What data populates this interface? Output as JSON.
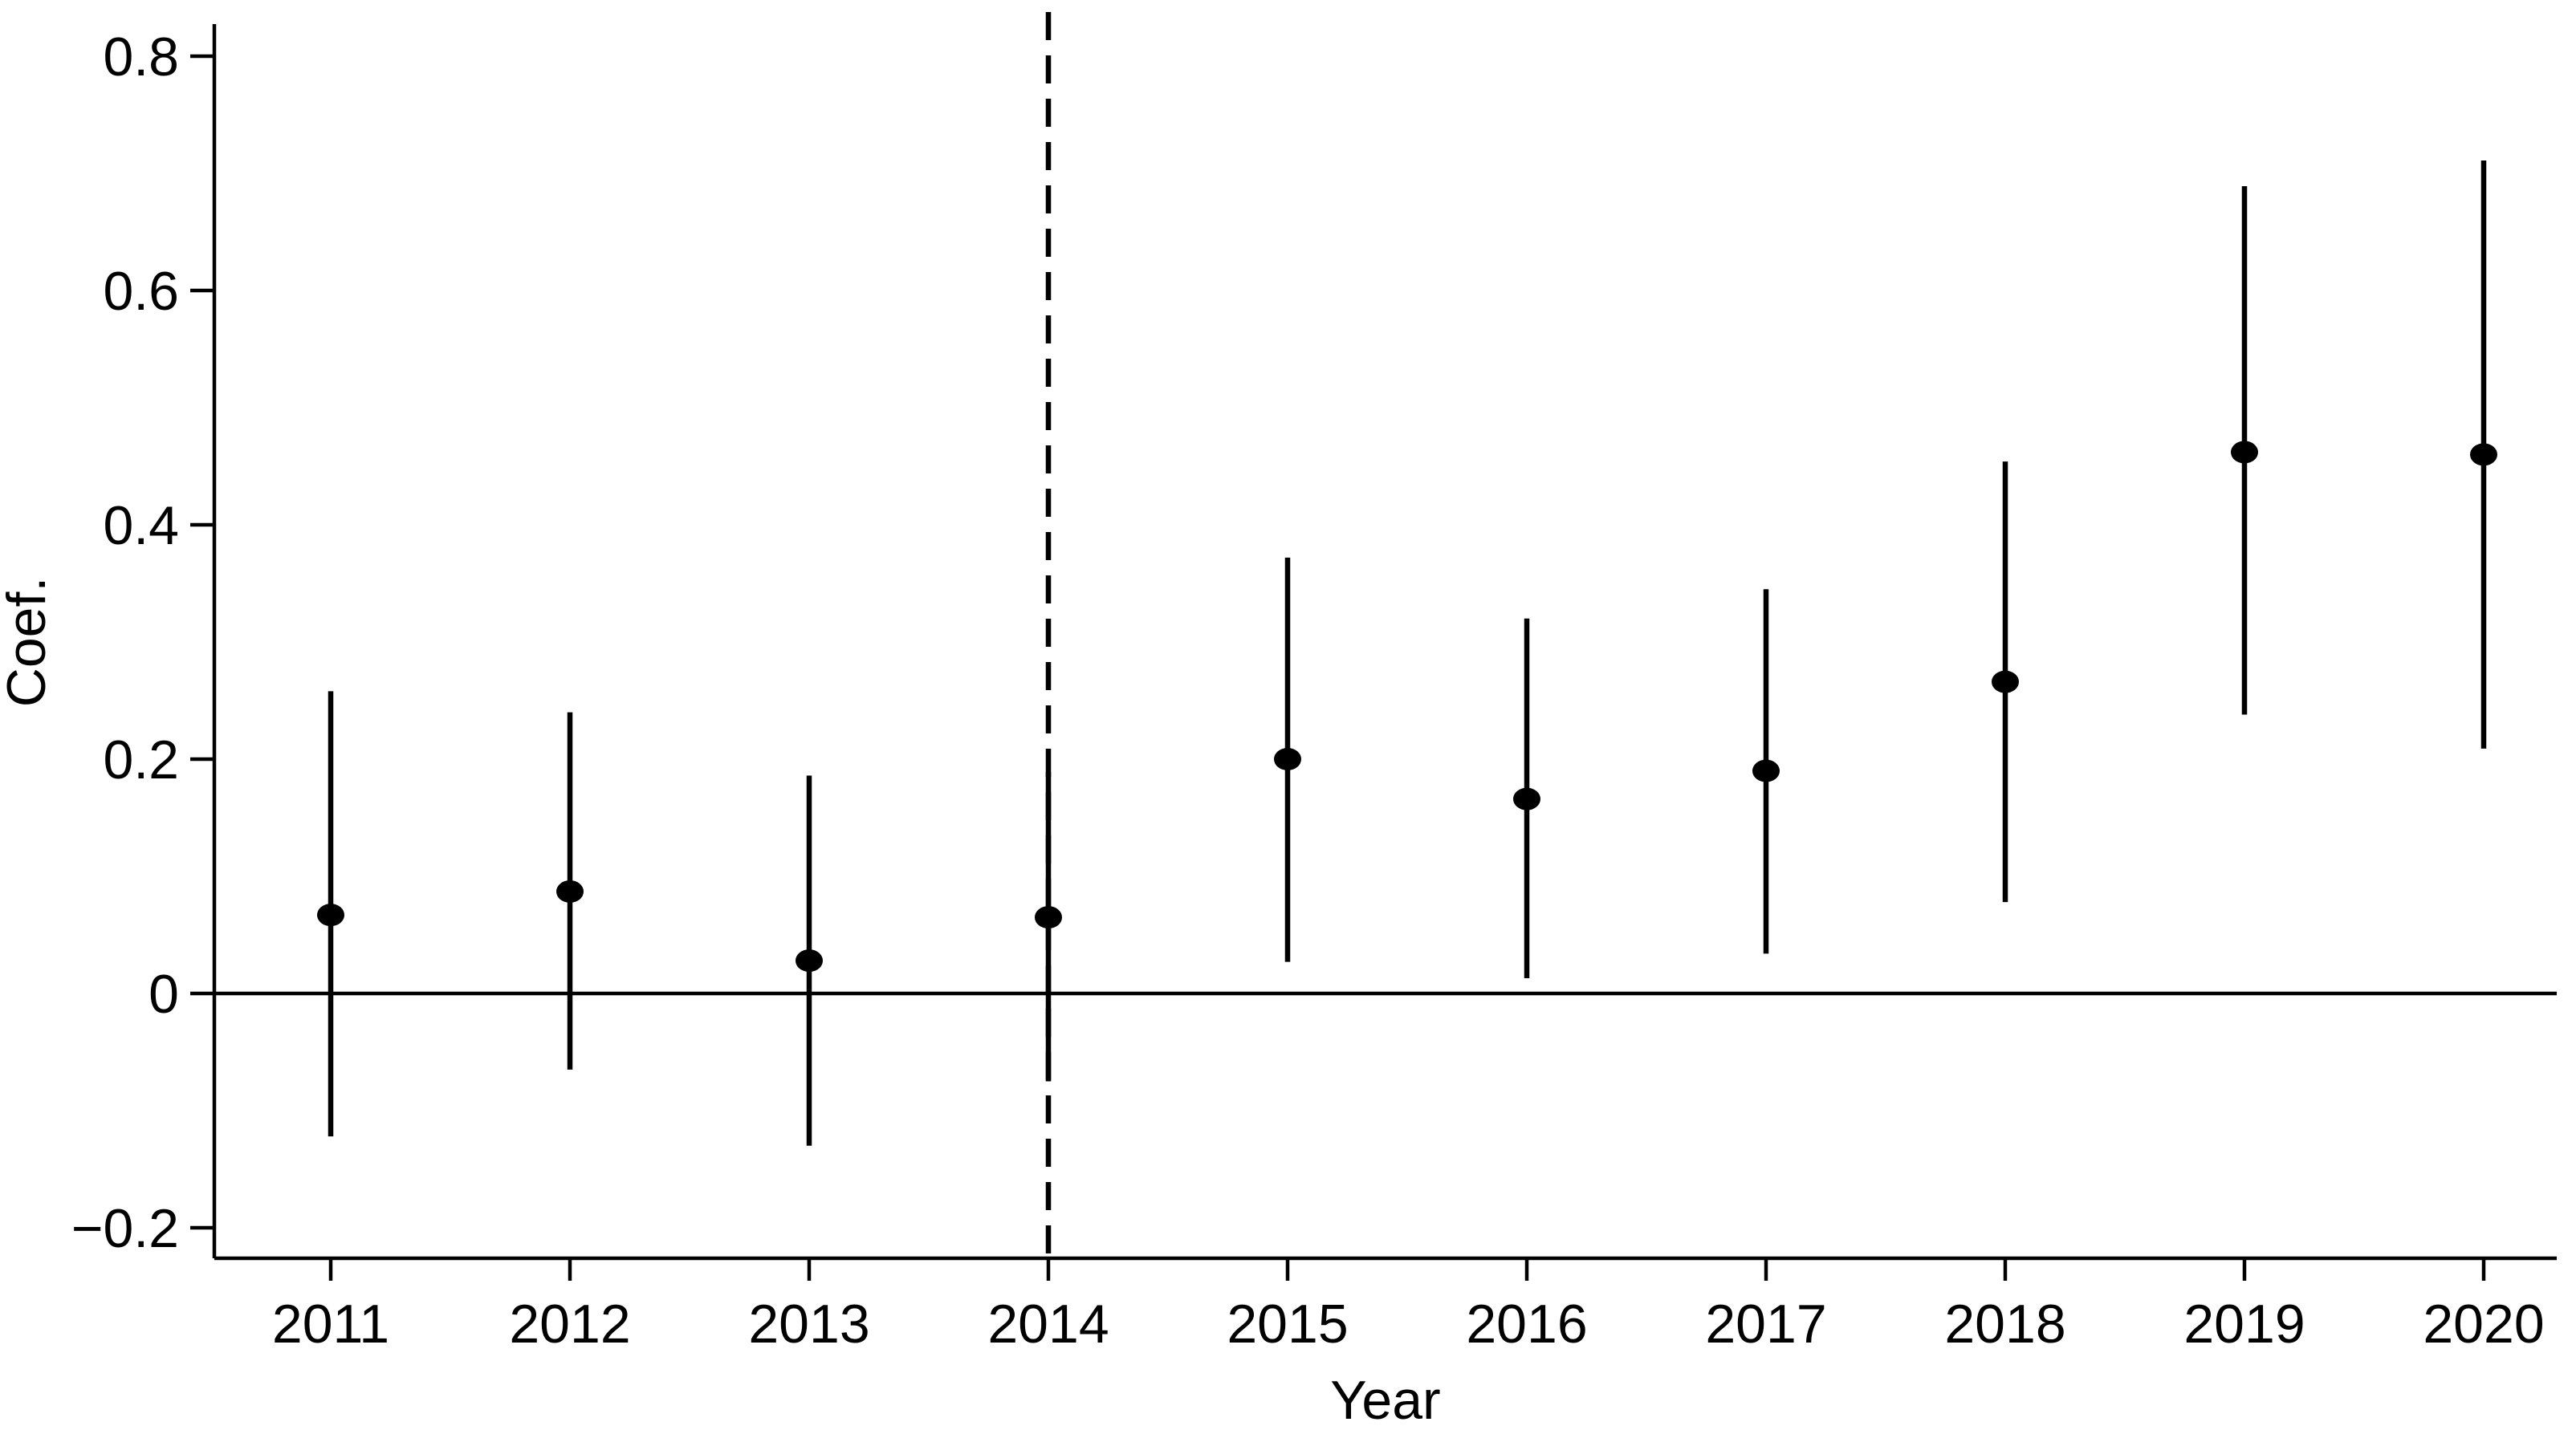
{
  "figure": {
    "background_color": "#ffffff",
    "line_color": "#000000",
    "marker_color": "#000000"
  },
  "chart_data": {
    "type": "scatter",
    "subtype": "event-study coefficient plot with 95% confidence intervals",
    "title": "",
    "xlabel": "Year",
    "ylabel": "Coef.",
    "grid": false,
    "legend": false,
    "x_tick_labels": [
      "2011",
      "2012",
      "2013",
      "2014",
      "2015",
      "2016",
      "2017",
      "2018",
      "2019",
      "2020"
    ],
    "y_ticks": [
      -0.2,
      0,
      0.2,
      0.4,
      0.6,
      0.8
    ],
    "y_tick_labels": [
      "−0.2",
      "0",
      "0.2",
      "0.4",
      "0.6",
      "0.8"
    ],
    "ylim": [
      -0.226,
      0.827
    ],
    "xlim_years": [
      2010.5,
      2020.31
    ],
    "reference_lines": {
      "horizontal_zero_line_y": 0,
      "vertical_dashed_line_x_year": 2014
    },
    "points": [
      {
        "year": 2011,
        "coef": 0.067,
        "ci_low": -0.122,
        "ci_high": 0.258
      },
      {
        "year": 2012,
        "coef": 0.087,
        "ci_low": -0.065,
        "ci_high": 0.24
      },
      {
        "year": 2013,
        "coef": 0.028,
        "ci_low": -0.13,
        "ci_high": 0.186
      },
      {
        "year": 2014,
        "coef": 0.065,
        "ci_low": -0.075,
        "ci_high": 0.189
      },
      {
        "year": 2015,
        "coef": 0.2,
        "ci_low": 0.027,
        "ci_high": 0.372
      },
      {
        "year": 2016,
        "coef": 0.166,
        "ci_low": 0.013,
        "ci_high": 0.32
      },
      {
        "year": 2017,
        "coef": 0.19,
        "ci_low": 0.034,
        "ci_high": 0.345
      },
      {
        "year": 2018,
        "coef": 0.266,
        "ci_low": 0.078,
        "ci_high": 0.454
      },
      {
        "year": 2019,
        "coef": 0.462,
        "ci_low": 0.238,
        "ci_high": 0.689
      },
      {
        "year": 2020,
        "coef": 0.46,
        "ci_low": 0.209,
        "ci_high": 0.711
      }
    ],
    "series": [
      {
        "name": "coefficient-estimate",
        "values": [
          0.067,
          0.087,
          0.028,
          0.065,
          0.2,
          0.166,
          0.19,
          0.266,
          0.462,
          0.46
        ]
      }
    ]
  }
}
